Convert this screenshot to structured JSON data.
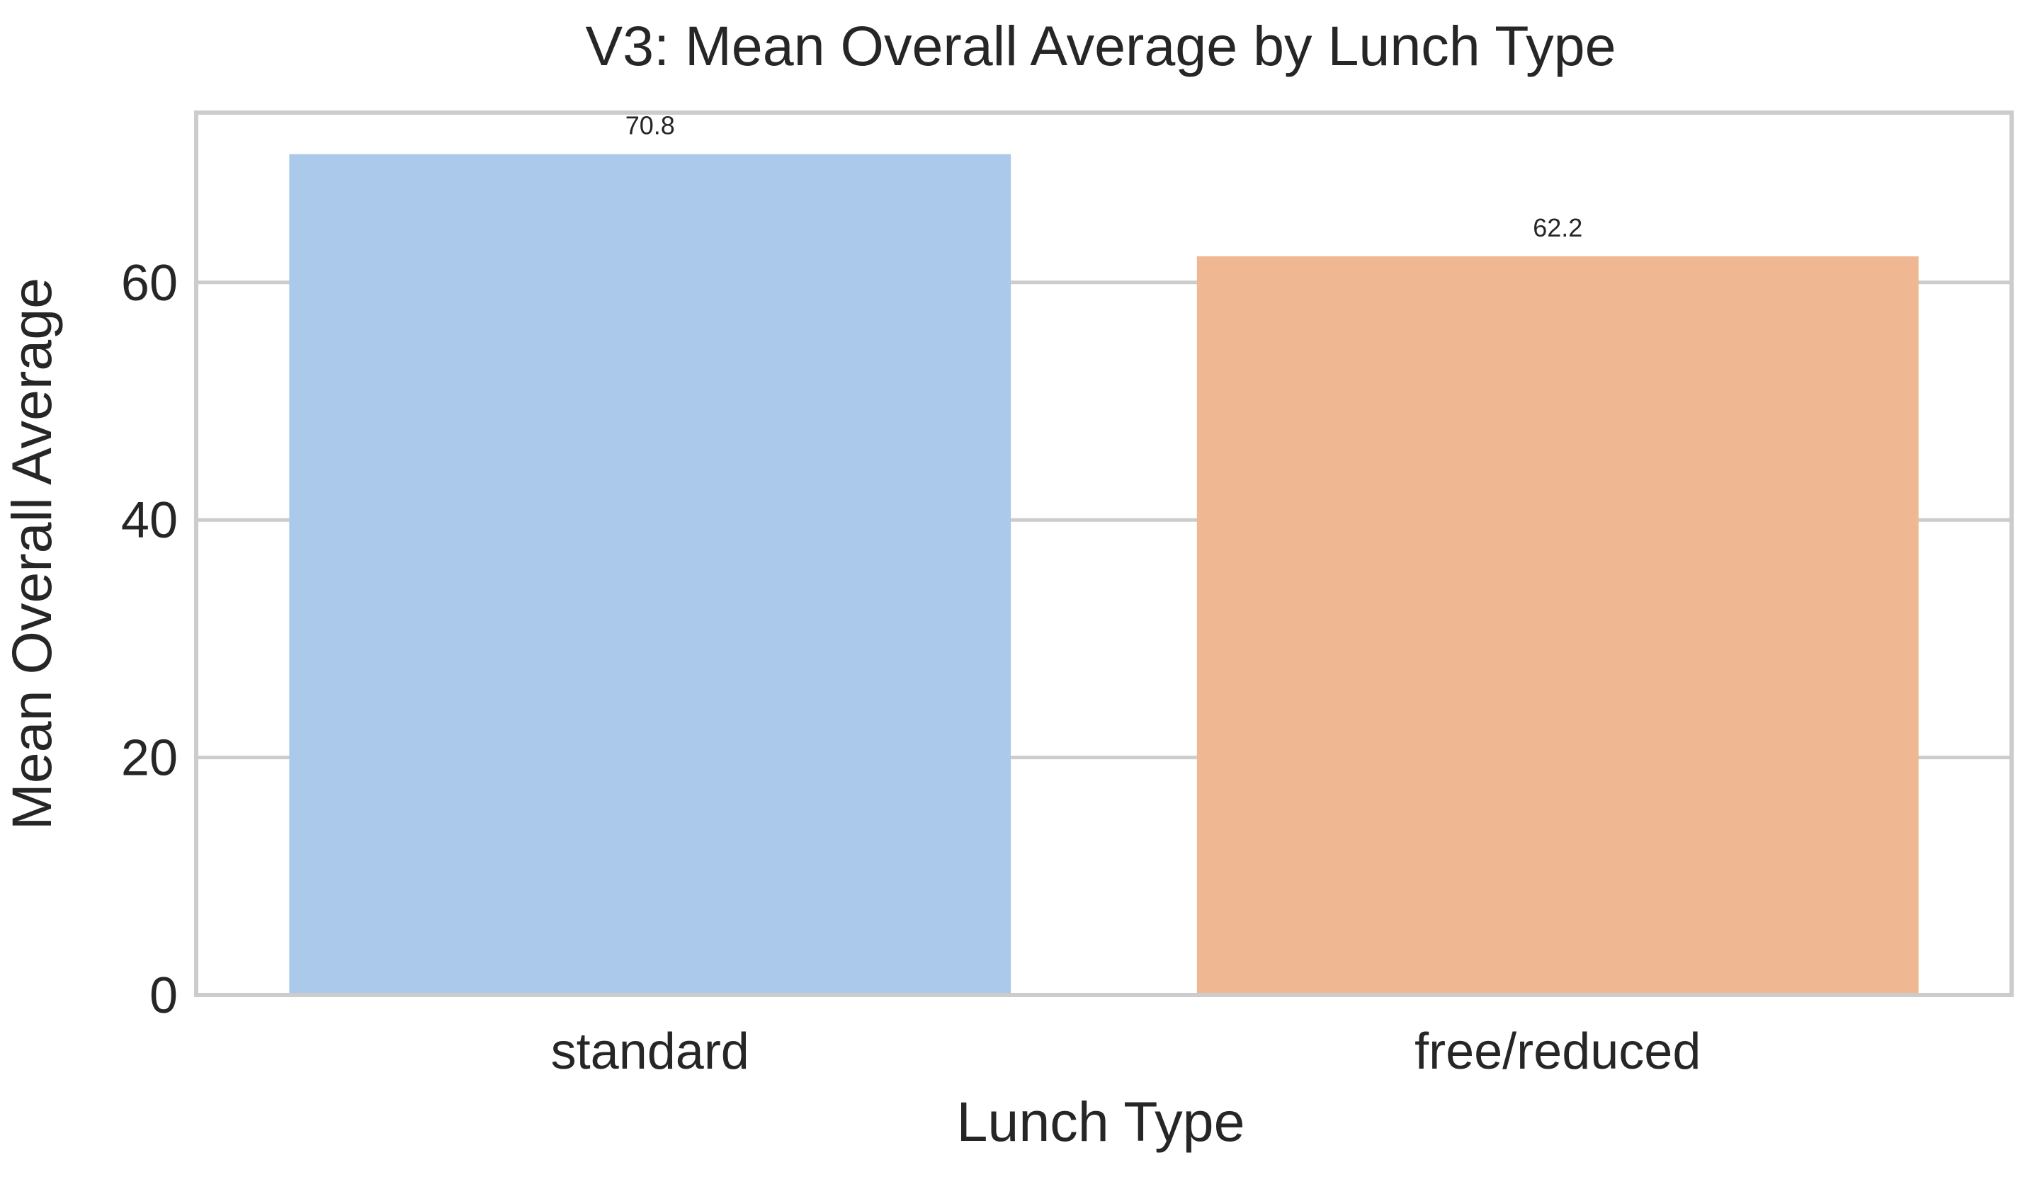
{
  "chart_data": {
    "type": "bar",
    "title": "V3: Mean Overall Average by Lunch Type",
    "xlabel": "Lunch Type",
    "ylabel": "Mean Overall Average",
    "categories": [
      "standard",
      "free/reduced"
    ],
    "values": [
      70.8,
      62.2
    ],
    "data_labels": [
      "70.8",
      "62.2"
    ],
    "colors": [
      "#abc9ea",
      "#efb792"
    ],
    "ylim": [
      0,
      74.3
    ],
    "yticks": [
      0,
      20,
      40,
      60
    ],
    "ytick_labels": [
      "0",
      "20",
      "40",
      "60"
    ],
    "grid": true,
    "legend": "none"
  }
}
